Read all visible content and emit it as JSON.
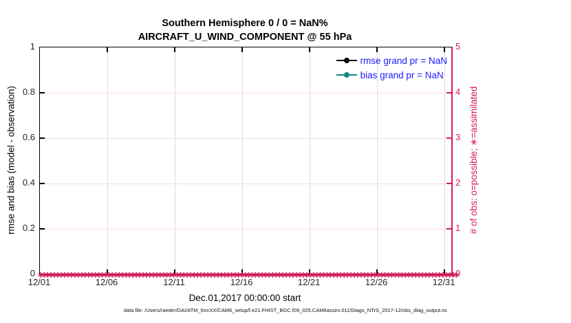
{
  "figure": {
    "title_line1": "Southern Hemisphere 0 / 0 = NaN%",
    "title_line2": "AIRCRAFT_U_WIND_COMPONENT @ 55 hPa",
    "xlabel": "Dec.01,2017 00:00:00 start",
    "ylabel_left": "rmse and bias (model - observation)",
    "ylabel_right": "# of obs: o=possible; ∗=assimilated",
    "footer": "data file: /Users/raeder/DAI/ATM_forcXX/CAM6_setup/f.e21.FHIST_BGC.f09_025.CAM6assim.011/Diags_NTrS_2017-12/obs_diag_output.nc"
  },
  "legend": [
    {
      "label": "rmse grand pr = NaN",
      "color": "#000000"
    },
    {
      "label": "bias grand pr = NaN",
      "color": "#0e8a82"
    }
  ],
  "colors": {
    "right_axis": "#d5195b",
    "legend_text": "#1a1aff",
    "grid_vertical": "#dcdcdc",
    "grid_horizontal": "#f7d8e1",
    "rmse_line": "#000000",
    "bias_line": "#0e8a82"
  },
  "chart_data": {
    "type": "line",
    "title": "Southern Hemisphere 0 / 0 = NaN%  AIRCRAFT_U_WIND_COMPONENT @ 55 hPa",
    "xlabel": "Dec.01,2017 00:00:00 start",
    "x_axis": {
      "tick_labels": [
        "12/01",
        "12/06",
        "12/11",
        "12/16",
        "12/21",
        "12/26",
        "12/31"
      ],
      "tick_days": [
        0,
        5,
        10,
        15,
        20,
        25,
        30
      ],
      "range_days": [
        0,
        30.5
      ]
    },
    "left_axis": {
      "label": "rmse and bias (model - observation)",
      "range": [
        0,
        1
      ],
      "ticks": [
        0,
        0.2,
        0.4,
        0.6,
        0.8,
        1
      ]
    },
    "right_axis": {
      "label": "# of obs: o=possible; ∗=assimilated",
      "range": [
        0,
        5
      ],
      "ticks": [
        0,
        1,
        2,
        3,
        4,
        5
      ]
    },
    "grid": true,
    "legend_position": "top-right-inside",
    "series": [
      {
        "name": "rmse grand pr = NaN",
        "axis": "left",
        "values": "NaN (no points plotted)"
      },
      {
        "name": "bias grand pr = NaN",
        "axis": "left",
        "values": "NaN (no points plotted)"
      },
      {
        "name": "# of obs possible",
        "axis": "right",
        "marker": "∗",
        "interval_days": 0.25,
        "start_day": 0,
        "end_day": 30.5,
        "constant_value": 0
      },
      {
        "name": "# of obs assimilated",
        "axis": "right",
        "marker": "∗",
        "interval_days": 0.25,
        "start_day": 0,
        "end_day": 30.5,
        "constant_value": 0
      }
    ]
  }
}
